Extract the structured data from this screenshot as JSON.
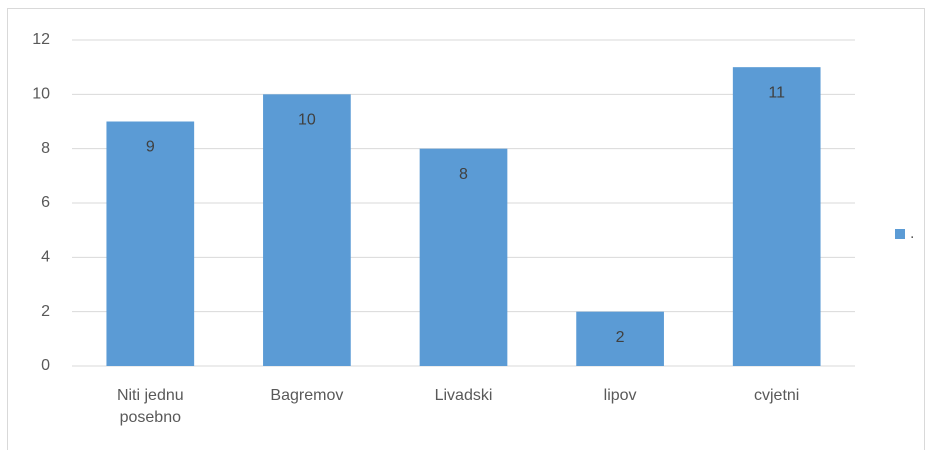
{
  "chart_data": {
    "type": "bar",
    "categories": [
      "Niti jednu posebno",
      "Bagremov",
      "Livadski",
      "lipov",
      "cvjetni"
    ],
    "series": [
      {
        "name": ".",
        "color": "#5b9bd5",
        "values": [
          9,
          10,
          8,
          2,
          11
        ]
      }
    ],
    "ylim": [
      0,
      12
    ],
    "yticks": [
      0,
      2,
      4,
      6,
      8,
      10,
      12
    ],
    "grid": true,
    "legend": "right",
    "data_labels": true
  }
}
